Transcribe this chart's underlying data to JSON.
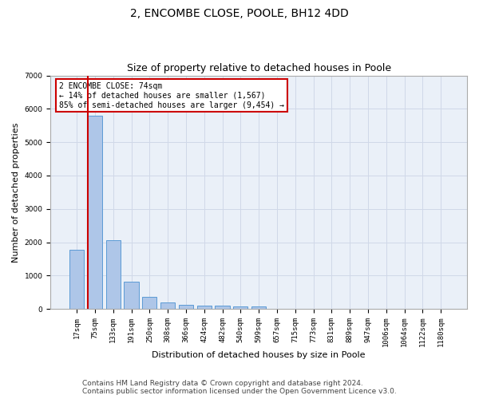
{
  "title": "2, ENCOMBE CLOSE, POOLE, BH12 4DD",
  "subtitle": "Size of property relative to detached houses in Poole",
  "xlabel": "Distribution of detached houses by size in Poole",
  "ylabel": "Number of detached properties",
  "categories": [
    "17sqm",
    "75sqm",
    "133sqm",
    "191sqm",
    "250sqm",
    "308sqm",
    "366sqm",
    "424sqm",
    "482sqm",
    "540sqm",
    "599sqm",
    "657sqm",
    "715sqm",
    "773sqm",
    "831sqm",
    "889sqm",
    "947sqm",
    "1006sqm",
    "1064sqm",
    "1122sqm",
    "1180sqm"
  ],
  "values": [
    1780,
    5800,
    2060,
    820,
    350,
    195,
    120,
    105,
    100,
    80,
    85,
    0,
    0,
    0,
    0,
    0,
    0,
    0,
    0,
    0,
    0
  ],
  "bar_color": "#aec6e8",
  "bar_edge_color": "#5b9bd5",
  "vline_x_index": 1,
  "vline_color": "#cc0000",
  "annotation_text": "2 ENCOMBE CLOSE: 74sqm\n← 14% of detached houses are smaller (1,567)\n85% of semi-detached houses are larger (9,454) →",
  "annotation_box_color": "#ffffff",
  "annotation_box_edge_color": "#cc0000",
  "ylim": [
    0,
    7000
  ],
  "yticks": [
    0,
    1000,
    2000,
    3000,
    4000,
    5000,
    6000,
    7000
  ],
  "grid_color": "#d0d8e8",
  "background_color": "#eaf0f8",
  "footer_line1": "Contains HM Land Registry data © Crown copyright and database right 2024.",
  "footer_line2": "Contains public sector information licensed under the Open Government Licence v3.0.",
  "title_fontsize": 10,
  "subtitle_fontsize": 9,
  "axis_label_fontsize": 8,
  "tick_fontsize": 6.5,
  "footer_fontsize": 6.5
}
